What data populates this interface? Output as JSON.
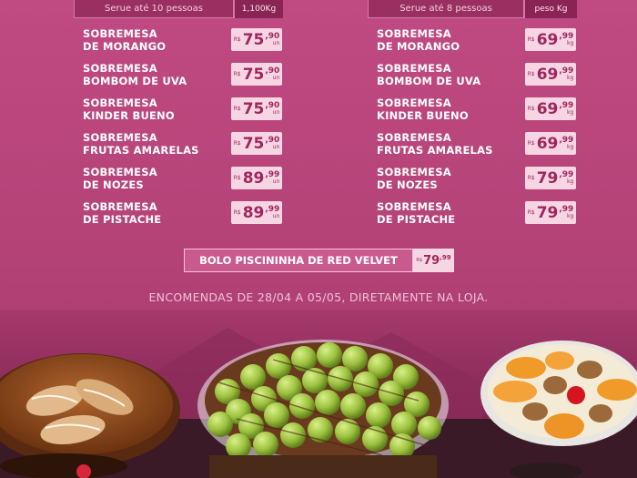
{
  "left_header": {
    "serves": "Serue até 10 pessoas",
    "weight": "1,100Kg"
  },
  "right_header": {
    "serves": "Serue até 8 pessoas",
    "weight": "peso Kg"
  },
  "left_items": [
    {
      "line1": "SOBREMESA",
      "line2": "DE MORANGO",
      "currency": "R$",
      "int": "75",
      "cents": ",90",
      "unit": "un"
    },
    {
      "line1": "SOBREMESA",
      "line2": "BOMBOM DE UVA",
      "currency": "R$",
      "int": "75",
      "cents": ",90",
      "unit": "un"
    },
    {
      "line1": "SOBREMESA",
      "line2": "KINDER BUENO",
      "currency": "R$",
      "int": "75",
      "cents": ",90",
      "unit": "un"
    },
    {
      "line1": "SOBREMESA",
      "line2": "FRUTAS AMARELAS",
      "currency": "R$",
      "int": "75",
      "cents": ",90",
      "unit": "un"
    },
    {
      "line1": "SOBREMESA",
      "line2": "DE NOZES",
      "currency": "R$",
      "int": "89",
      "cents": ",99",
      "unit": "un"
    },
    {
      "line1": "SOBREMESA",
      "line2": "DE PISTACHE",
      "currency": "R$",
      "int": "89",
      "cents": ",99",
      "unit": "un"
    }
  ],
  "right_items": [
    {
      "line1": "SOBREMESA",
      "line2": "DE MORANGO",
      "currency": "R$",
      "int": "69",
      "cents": ",99",
      "unit": "kg"
    },
    {
      "line1": "SOBREMESA",
      "line2": "BOMBOM DE UVA",
      "currency": "R$",
      "int": "69",
      "cents": ",99",
      "unit": "kg"
    },
    {
      "line1": "SOBREMESA",
      "line2": "KINDER BUENO",
      "currency": "R$",
      "int": "69",
      "cents": ",99",
      "unit": "kg"
    },
    {
      "line1": "SOBREMESA",
      "line2": "FRUTAS AMARELAS",
      "currency": "R$",
      "int": "69",
      "cents": ",99",
      "unit": "kg"
    },
    {
      "line1": "SOBREMESA",
      "line2": "DE NOZES",
      "currency": "R$",
      "int": "79",
      "cents": ",99",
      "unit": "kg"
    },
    {
      "line1": "SOBREMESA",
      "line2": "DE PISTACHE",
      "currency": "R$",
      "int": "79",
      "cents": ",99",
      "unit": "kg"
    }
  ],
  "bolo": {
    "label": "BOLO PISCININHA DE RED VELVET",
    "currency": "R$",
    "int": "79",
    "cents": ",99"
  },
  "footer": "ENCOMENDAS DE 28/04 A 05/05, DIRETAMENTE NA LOJA.",
  "colors": {
    "background": "#b34276",
    "price_tag": "#f7d6e3",
    "price_text": "#a0245e"
  }
}
